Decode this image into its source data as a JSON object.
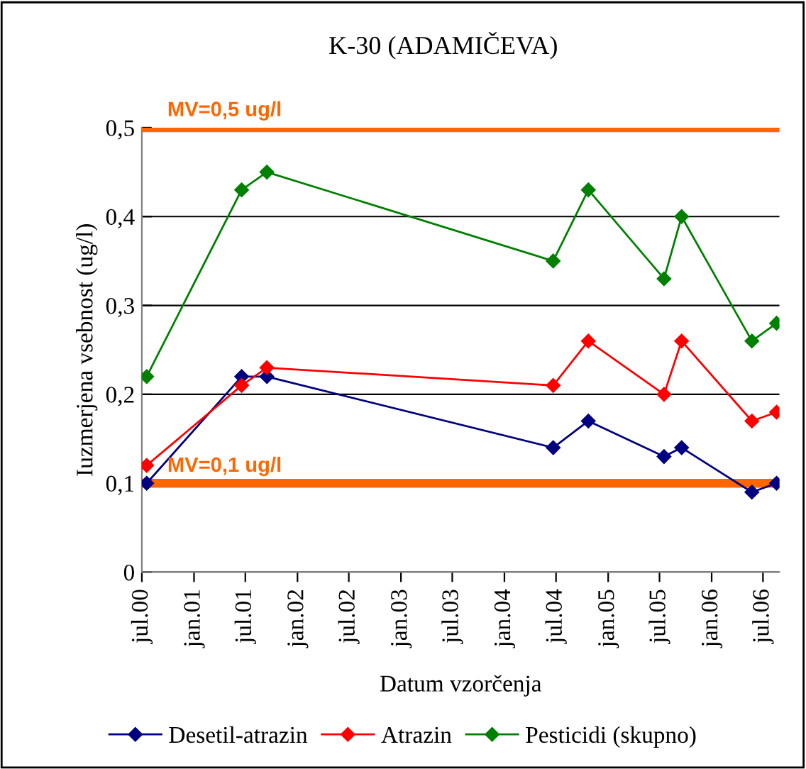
{
  "chart_data": {
    "type": "line",
    "title": "K-30 (ADAMIČEVA)",
    "xlabel": "Datum vzorčenja",
    "ylabel": "Iuzmerjena vsebnost (ug/l)",
    "x": [
      "2000-07-18",
      "2001-06-18",
      "2001-09-15",
      "2004-06-21",
      "2004-10-23",
      "2005-07-17",
      "2005-09-17",
      "2006-05-23",
      "2006-08-18"
    ],
    "series": [
      {
        "name": "Desetil-atrazin",
        "color": "#000080",
        "values": [
          0.1,
          0.22,
          0.22,
          0.14,
          0.17,
          0.13,
          0.14,
          0.09,
          0.1
        ]
      },
      {
        "name": "Atrazin",
        "color": "#ff0000",
        "values": [
          0.12,
          0.21,
          0.23,
          0.21,
          0.26,
          0.2,
          0.26,
          0.17,
          0.18
        ]
      },
      {
        "name": "Pesticidi (skupno)",
        "color": "#008000",
        "values": [
          0.22,
          0.43,
          0.45,
          0.35,
          0.43,
          0.33,
          0.4,
          0.26,
          0.28
        ]
      }
    ],
    "xlim": [
      "2000-07-01",
      "2006-08-28"
    ],
    "xticks": [
      {
        "value": "2000-07-01",
        "label": "jul.00"
      },
      {
        "value": "2001-01-01",
        "label": "jan.01"
      },
      {
        "value": "2001-07-01",
        "label": "jul.01"
      },
      {
        "value": "2002-01-01",
        "label": "jan.02"
      },
      {
        "value": "2002-07-01",
        "label": "jul.02"
      },
      {
        "value": "2003-01-01",
        "label": "jan.03"
      },
      {
        "value": "2003-07-01",
        "label": "jul.03"
      },
      {
        "value": "2004-01-01",
        "label": "jan.04"
      },
      {
        "value": "2004-07-01",
        "label": "jul.04"
      },
      {
        "value": "2005-01-01",
        "label": "jan.05"
      },
      {
        "value": "2005-07-01",
        "label": "jul.05"
      },
      {
        "value": "2006-01-01",
        "label": "jan.06"
      },
      {
        "value": "2006-07-01",
        "label": "jul.06"
      }
    ],
    "ylim": [
      0,
      0.5
    ],
    "yticks": [
      0,
      {
        "value": 0.1,
        "label": "0,1"
      },
      {
        "value": 0.2,
        "label": "0,2"
      },
      {
        "value": 0.3,
        "label": "0,3"
      },
      {
        "value": 0.4,
        "label": "0,4"
      },
      {
        "value": 0.5,
        "label": "0,5"
      }
    ],
    "ref_lines": [
      {
        "axis": "y",
        "value": 0.5,
        "label": "MV=0,5 ug/l",
        "color": "#ff6600"
      },
      {
        "axis": "y",
        "value": 0.1,
        "label": "MV=0,1 ug/l",
        "color": "#ff6600"
      }
    ],
    "grid": "y",
    "legend": "bottom",
    "marker": "diamond",
    "line_style": "solid"
  }
}
